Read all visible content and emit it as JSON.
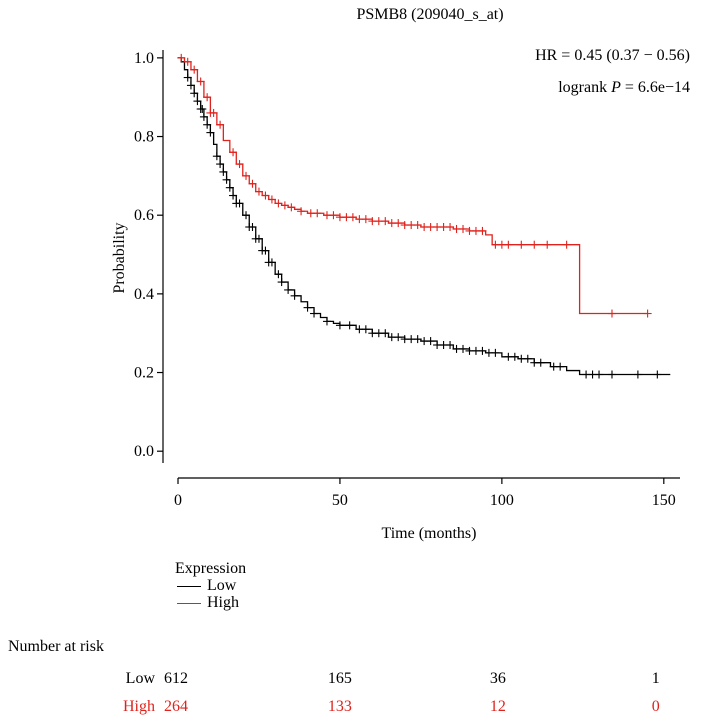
{
  "chart_data": {
    "type": "line",
    "title": "PSMB8 (209040_s_at)",
    "xlabel": "Time (months)",
    "ylabel": "Probability",
    "xlim": [
      0,
      155
    ],
    "ylim": [
      -0.03,
      1.02
    ],
    "xticks": [
      0,
      50,
      100,
      150
    ],
    "yticks": [
      0.0,
      0.2,
      0.4,
      0.6,
      0.8,
      1.0
    ],
    "ytick_labels": [
      "0.0",
      "0.2",
      "0.4",
      "0.6",
      "0.8",
      "1.0"
    ],
    "grid": false,
    "annotations": {
      "hr": "HR = 0.45 (0.37 − 0.56)",
      "logrank_prefix": "logrank ",
      "logrank_p": "P",
      "logrank_value": " = 6.6e−14"
    },
    "series": [
      {
        "name": "Low",
        "color": "#000000",
        "x": [
          0,
          1,
          2,
          3,
          4,
          5,
          6,
          7,
          8,
          9,
          10,
          11,
          12,
          13,
          14,
          15,
          16,
          17,
          18,
          20,
          22,
          24,
          26,
          28,
          30,
          32,
          34,
          36,
          38,
          40,
          42,
          44,
          46,
          48,
          50,
          55,
          60,
          65,
          70,
          75,
          80,
          85,
          90,
          95,
          100,
          105,
          110,
          115,
          120,
          123,
          124,
          130,
          140,
          152
        ],
        "y": [
          1.0,
          0.99,
          0.97,
          0.95,
          0.93,
          0.91,
          0.89,
          0.87,
          0.85,
          0.83,
          0.81,
          0.78,
          0.75,
          0.73,
          0.71,
          0.69,
          0.67,
          0.65,
          0.63,
          0.6,
          0.57,
          0.54,
          0.51,
          0.48,
          0.45,
          0.43,
          0.41,
          0.395,
          0.38,
          0.365,
          0.35,
          0.34,
          0.33,
          0.325,
          0.32,
          0.31,
          0.3,
          0.29,
          0.285,
          0.28,
          0.27,
          0.26,
          0.255,
          0.25,
          0.24,
          0.235,
          0.225,
          0.215,
          0.205,
          0.205,
          0.195,
          0.195,
          0.195,
          0.195
        ],
        "censor_x": [
          3,
          4,
          5,
          6,
          7,
          7.5,
          8,
          9,
          10,
          12,
          13,
          14,
          15,
          16,
          17,
          18,
          19,
          21,
          22,
          23,
          24,
          25,
          26,
          27,
          28,
          29,
          31,
          32,
          34,
          36,
          40,
          42,
          46,
          50,
          53,
          56,
          58,
          60,
          62,
          64,
          66,
          68,
          70,
          72,
          74,
          76,
          78,
          80,
          82,
          84,
          86,
          88,
          90,
          92,
          94,
          96,
          98,
          102,
          104,
          106,
          108,
          110,
          112,
          116,
          118,
          126,
          128,
          130,
          134,
          142,
          148
        ]
      },
      {
        "name": "High",
        "color": "#e0221c",
        "x": [
          0,
          2,
          4,
          6,
          8,
          10,
          12,
          14,
          16,
          18,
          20,
          22,
          24,
          26,
          28,
          30,
          32,
          34,
          36,
          38,
          40,
          45,
          50,
          55,
          60,
          65,
          70,
          75,
          80,
          85,
          90,
          95,
          97,
          100,
          110,
          123,
          124,
          130,
          145
        ],
        "y": [
          1.0,
          0.99,
          0.97,
          0.94,
          0.9,
          0.86,
          0.83,
          0.79,
          0.76,
          0.73,
          0.7,
          0.68,
          0.66,
          0.65,
          0.64,
          0.63,
          0.625,
          0.62,
          0.615,
          0.61,
          0.605,
          0.6,
          0.595,
          0.59,
          0.585,
          0.58,
          0.575,
          0.57,
          0.57,
          0.565,
          0.56,
          0.55,
          0.525,
          0.525,
          0.525,
          0.525,
          0.35,
          0.35,
          0.35
        ],
        "censor_x": [
          1,
          3,
          5,
          7,
          9,
          10,
          11,
          13,
          17,
          19,
          21,
          23,
          25,
          27,
          29,
          31,
          33,
          35,
          38,
          41,
          43,
          46,
          48,
          50,
          52,
          54,
          56,
          58,
          60,
          62,
          64,
          66,
          68,
          70,
          72,
          74,
          76,
          78,
          80,
          82,
          84,
          86,
          88,
          90,
          92,
          94,
          98,
          100,
          102,
          106,
          110,
          114,
          120,
          134,
          145
        ]
      }
    ],
    "legend": {
      "title": "Expression",
      "placement": "bottom-left",
      "entries": [
        "Low",
        "High"
      ]
    },
    "number_at_risk": {
      "title": "Number at risk",
      "times": [
        0,
        50,
        100,
        150
      ],
      "rows": [
        {
          "label": "Low",
          "color": "#000000",
          "values": [
            "612",
            "165",
            "36",
            "1"
          ]
        },
        {
          "label": "High",
          "color": "#e0221c",
          "values": [
            "264",
            "133",
            "12",
            "0"
          ]
        }
      ]
    }
  }
}
